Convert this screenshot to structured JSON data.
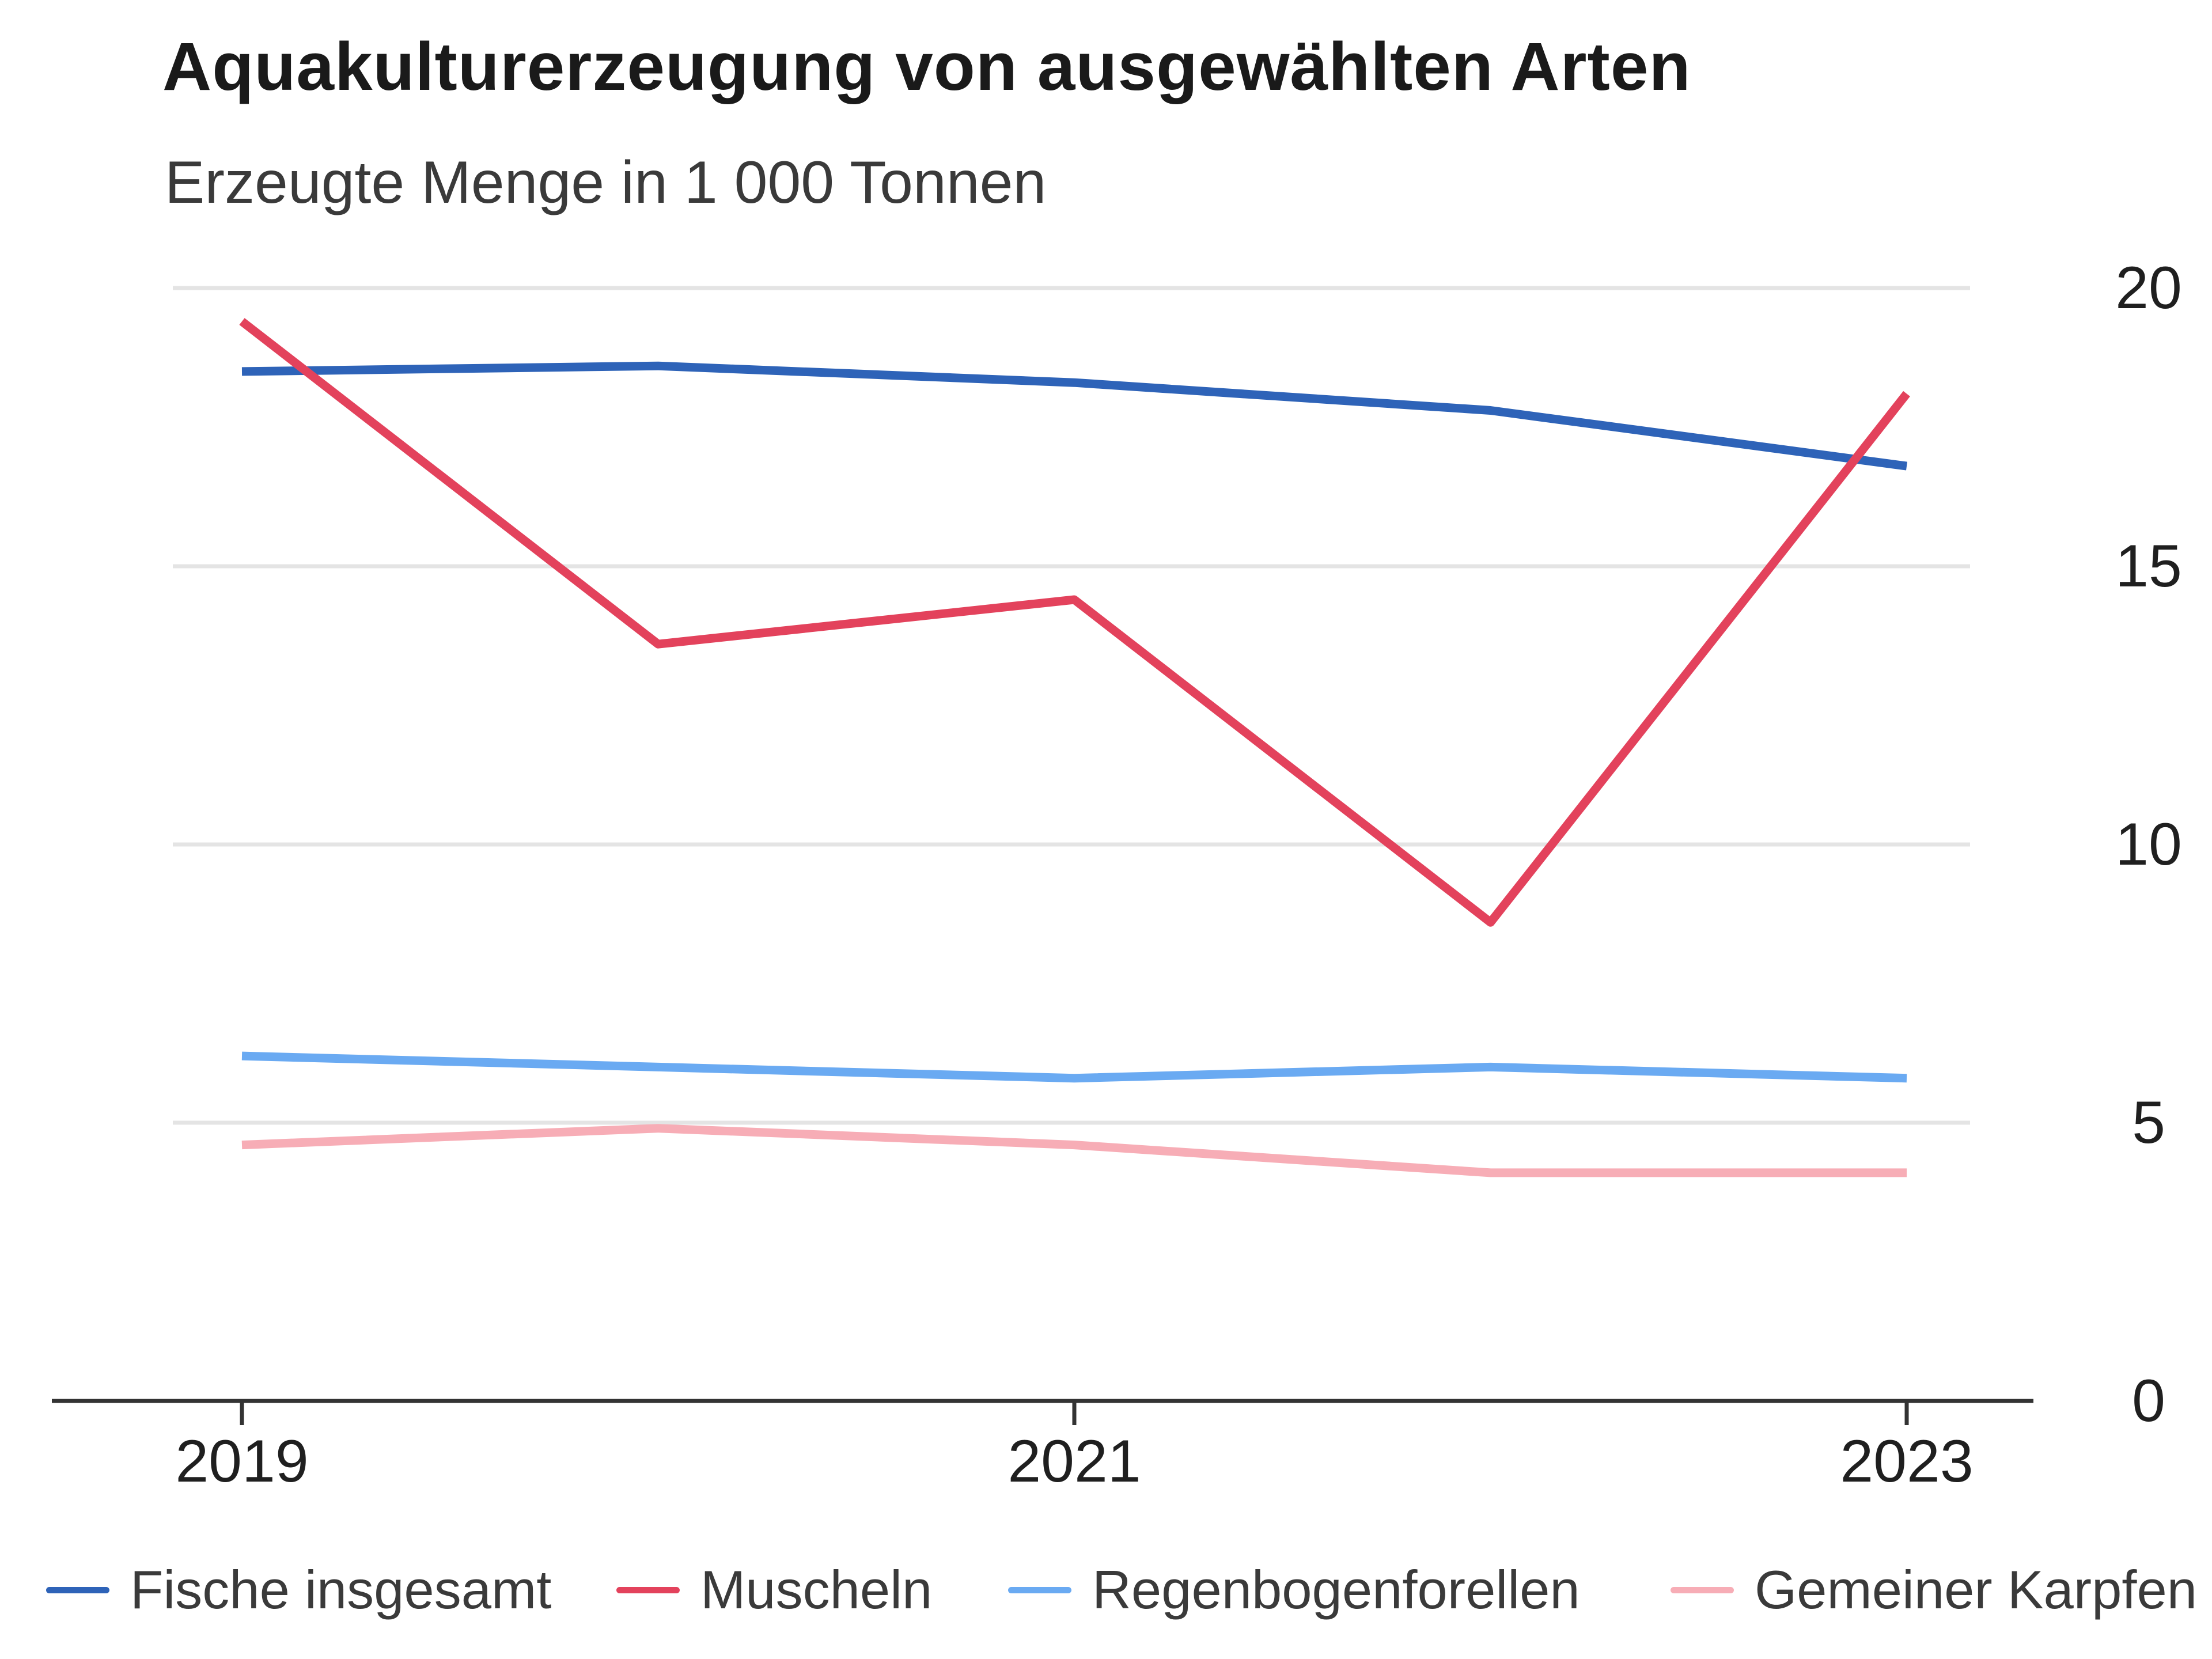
{
  "chart_data": {
    "type": "line",
    "title": "Aquakulturerzeugung von ausgewählten Arten",
    "subtitle": "Erzeugte Menge in 1 000 Tonnen",
    "x": [
      2019,
      2020,
      2021,
      2022,
      2023
    ],
    "x_tick_labels": [
      "2019",
      "2021",
      "2023"
    ],
    "y_ticks": [
      0,
      5,
      10,
      15,
      20
    ],
    "y_tick_labels": [
      "0",
      "5",
      "10",
      "15",
      "20"
    ],
    "ylim": [
      0,
      20
    ],
    "y_axis_side": "right",
    "grid": true,
    "xlabel": "",
    "ylabel": "",
    "legend_position": "bottom",
    "series": [
      {
        "name": "Fische insgesamt",
        "color": "#2e63b8",
        "values": [
          18.5,
          18.6,
          18.3,
          17.8,
          16.8
        ]
      },
      {
        "name": "Muscheln",
        "color": "#e3425c",
        "values": [
          19.4,
          13.6,
          14.4,
          8.6,
          18.1
        ]
      },
      {
        "name": "Regenbogenforellen",
        "color": "#6aaaf2",
        "values": [
          6.2,
          6.0,
          5.8,
          6.0,
          5.8
        ]
      },
      {
        "name": "Gemeiner Karpfen",
        "color": "#f7adb6",
        "values": [
          4.6,
          4.9,
          4.6,
          4.1,
          4.1
        ]
      }
    ]
  }
}
